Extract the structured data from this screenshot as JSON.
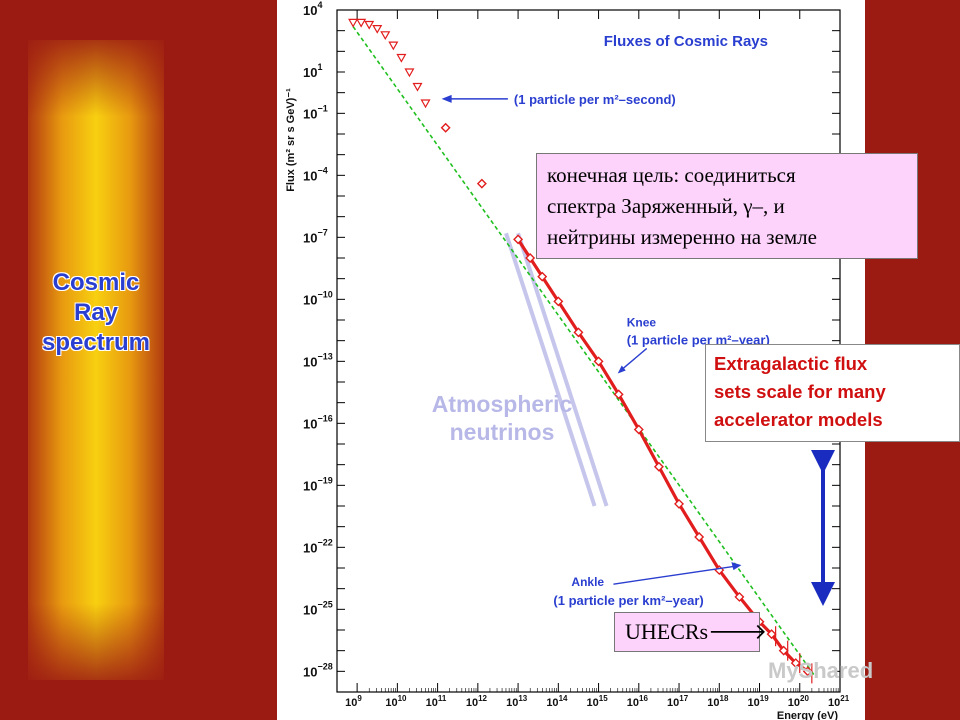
{
  "slide": {
    "side_title": [
      "Cosmic",
      "Ray",
      "spectrum"
    ],
    "note_box_lines": [
      "конечная цель: соединиться",
      "спектра Заряженный, γ–, и",
      "нейтрины измеренно на земле"
    ],
    "uhecr_label": "UHECRs",
    "uhecr_arrow": "🡒",
    "extragalactic_lines": [
      "Extragalactic flux",
      "sets scale for many",
      "accelerator models"
    ],
    "atmospheric_lines": [
      "Atmospheric",
      "neutrinos"
    ],
    "watermark": "MyShared",
    "colors": {
      "background": "#9b1a12",
      "title_blue": "#2a3fd0",
      "red_text": "#d01010",
      "arrow_blue": "#1a2bbf",
      "callout_pink": "#fdd3fb",
      "data_red": "#e21d1d",
      "fit_green": "#1fbf1f",
      "figure_blue": "#2a3ed0"
    }
  },
  "chart_data": {
    "type": "scatter",
    "title": "Fluxes of Cosmic Rays",
    "xlabel": "Energy (eV)",
    "ylabel": "Flux (m² sr s GeV)⁻¹",
    "x_scale": "log",
    "y_scale": "log",
    "xlim_log10": [
      8.5,
      21
    ],
    "ylim_log10": [
      -29,
      4
    ],
    "x_ticks": [
      {
        "exp": 9,
        "label_base": "10",
        "label_exp": "9"
      },
      {
        "exp": 10,
        "label_base": "10",
        "label_exp": "10"
      },
      {
        "exp": 11,
        "label_base": "10",
        "label_exp": "11"
      },
      {
        "exp": 12,
        "label_base": "10",
        "label_exp": "12"
      },
      {
        "exp": 13,
        "label_base": "10",
        "label_exp": "13"
      },
      {
        "exp": 14,
        "label_base": "10",
        "label_exp": "14"
      },
      {
        "exp": 15,
        "label_base": "10",
        "label_exp": "15"
      },
      {
        "exp": 16,
        "label_base": "10",
        "label_exp": "16"
      },
      {
        "exp": 17,
        "label_base": "10",
        "label_exp": "17"
      },
      {
        "exp": 18,
        "label_base": "10",
        "label_exp": "18"
      },
      {
        "exp": 19,
        "label_base": "10",
        "label_exp": "19"
      },
      {
        "exp": 20,
        "label_base": "10",
        "label_exp": "20"
      },
      {
        "exp": 21,
        "label_base": "10",
        "label_exp": "21"
      }
    ],
    "y_ticks": [
      {
        "exp": 4,
        "label_base": "10",
        "label_exp": "4"
      },
      {
        "exp": 1,
        "label_base": "10",
        "label_exp": "1"
      },
      {
        "exp": -1,
        "label_base": "10",
        "label_exp": "−1"
      },
      {
        "exp": -4,
        "label_base": "10",
        "label_exp": "−4"
      },
      {
        "exp": -7,
        "label_base": "10",
        "label_exp": "−7"
      },
      {
        "exp": -10,
        "label_base": "10",
        "label_exp": "−10"
      },
      {
        "exp": -13,
        "label_base": "10",
        "label_exp": "−13"
      },
      {
        "exp": -16,
        "label_base": "10",
        "label_exp": "−16"
      },
      {
        "exp": -19,
        "label_base": "10",
        "label_exp": "−19"
      },
      {
        "exp": -22,
        "label_base": "10",
        "label_exp": "−22"
      },
      {
        "exp": -25,
        "label_base": "10",
        "label_exp": "−25"
      },
      {
        "exp": -28,
        "label_base": "10",
        "label_exp": "−28"
      }
    ],
    "series": [
      {
        "marker": "triangle",
        "log10_x": [
          8.9,
          9.1,
          9.3,
          9.5,
          9.7,
          9.9,
          10.1,
          10.3,
          10.5,
          10.7
        ],
        "log10_y": [
          3.4,
          3.4,
          3.3,
          3.1,
          2.8,
          2.3,
          1.7,
          1.0,
          0.3,
          -0.5
        ]
      },
      {
        "marker": "diamond",
        "log10_x": [
          11.2,
          12.1,
          13.0,
          13.3,
          13.6,
          14.0,
          14.5,
          15.0,
          15.5,
          16.0,
          16.5,
          17.0,
          17.5,
          18.0,
          18.5,
          19.0,
          19.3,
          19.6,
          19.9,
          20.2
        ],
        "log10_y": [
          -1.7,
          -4.4,
          -7.1,
          -8.0,
          -8.9,
          -10.1,
          -11.6,
          -13.0,
          -14.6,
          -16.3,
          -18.1,
          -19.9,
          -21.5,
          -23.1,
          -24.4,
          -25.6,
          -26.2,
          -27.0,
          -27.6,
          -28.0
        ]
      }
    ],
    "fit_line": {
      "log10_x": [
        8.9,
        20.4
      ],
      "log10_y": [
        3.2,
        -28.3
      ]
    },
    "neutrino_band": {
      "log10_x": [
        12.8,
        15.0
      ],
      "log10_y": [
        -6.8,
        -20.0
      ]
    },
    "annotations": [
      {
        "lines": [
          "(1 particle per m²–second)"
        ],
        "log10_x": 11.1,
        "log10_y": -0.3
      },
      {
        "lines": [
          "Knee",
          "(1 particle per m²–year)"
        ],
        "log10_x": 15.7,
        "log10_y": -11.7
      },
      {
        "lines": [
          "Ankle",
          "(1 particle per km²–year)"
        ],
        "log10_x": 18.6,
        "log10_y": -23.2
      }
    ]
  }
}
